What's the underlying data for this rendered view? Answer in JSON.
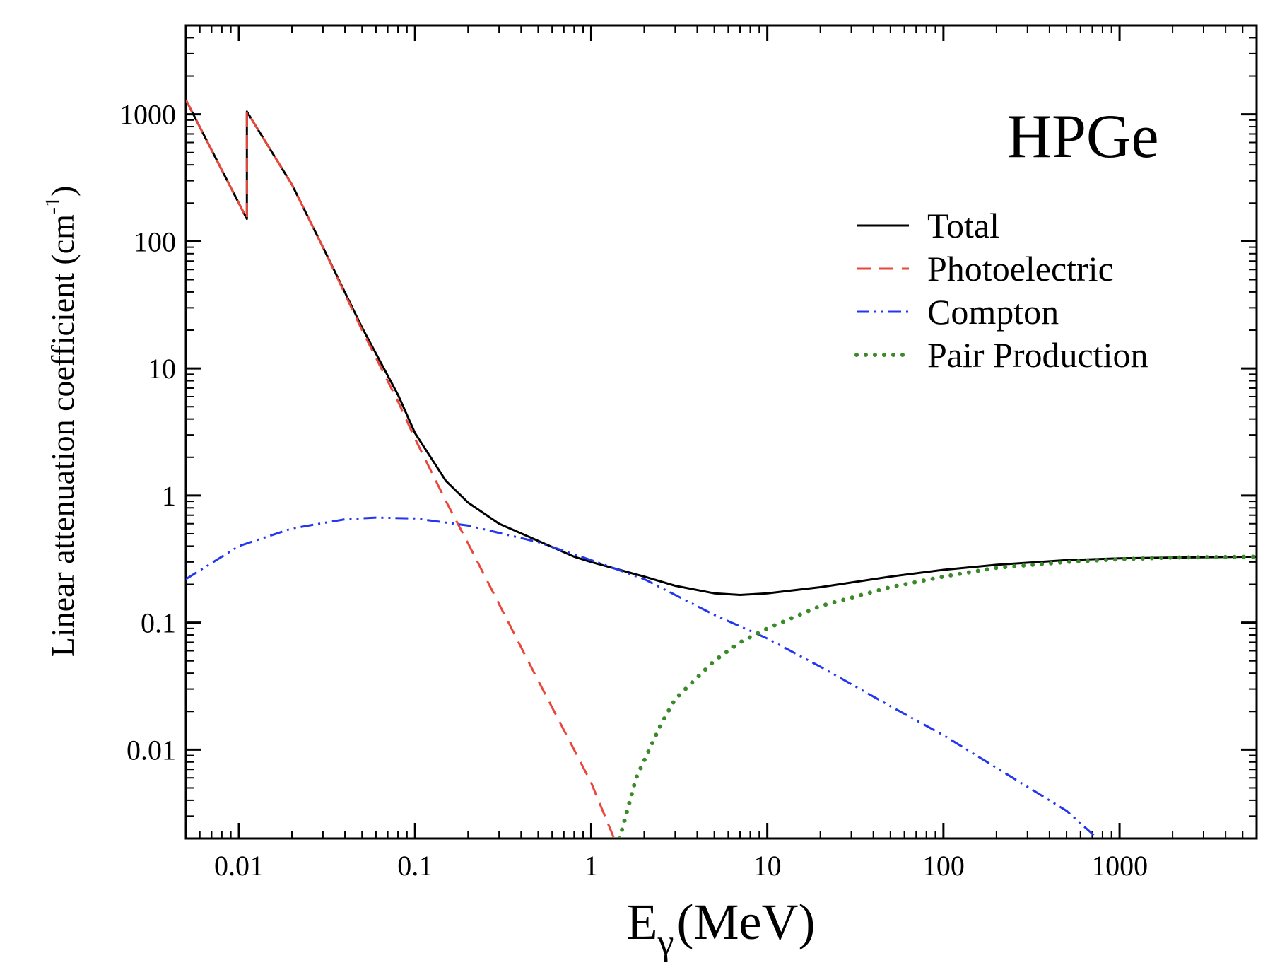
{
  "chart_data": {
    "type": "line",
    "panel_label": "HPGe",
    "xlabel": "E",
    "xlabel_sub": "γ",
    "xlabel_unit": "(MeV)",
    "ylabel": "Linear attenuation coefficient (cm",
    "ylabel_sup": "-1",
    "ylabel_close": ")",
    "xscale": "log",
    "yscale": "log",
    "xlim": [
      0.005,
      6000
    ],
    "ylim": [
      0.002,
      5000
    ],
    "xticks": [
      0.01,
      0.1,
      1,
      10,
      100,
      1000
    ],
    "xtick_labels": [
      "0.01",
      "0.1",
      "1",
      "10",
      "100",
      "1000"
    ],
    "yticks": [
      0.01,
      0.1,
      1,
      10,
      100,
      1000
    ],
    "ytick_labels": [
      "0.01",
      "0.1",
      "1",
      "10",
      "100",
      "1000"
    ],
    "grid": false,
    "legend_position": "top-right",
    "series": [
      {
        "name": "Total",
        "color": "#000000",
        "style": "solid",
        "points": [
          [
            0.005,
            1300
          ],
          [
            0.0111,
            150
          ],
          [
            0.0111,
            1050
          ],
          [
            0.02,
            280
          ],
          [
            0.03,
            90
          ],
          [
            0.05,
            21
          ],
          [
            0.08,
            6.2
          ],
          [
            0.1,
            3.1
          ],
          [
            0.15,
            1.3
          ],
          [
            0.2,
            0.88
          ],
          [
            0.3,
            0.6
          ],
          [
            0.5,
            0.44
          ],
          [
            0.8,
            0.33
          ],
          [
            1,
            0.3
          ],
          [
            2,
            0.23
          ],
          [
            3,
            0.195
          ],
          [
            5,
            0.17
          ],
          [
            7,
            0.165
          ],
          [
            10,
            0.17
          ],
          [
            20,
            0.19
          ],
          [
            50,
            0.23
          ],
          [
            100,
            0.26
          ],
          [
            200,
            0.285
          ],
          [
            500,
            0.31
          ],
          [
            1000,
            0.32
          ],
          [
            2000,
            0.325
          ],
          [
            6000,
            0.33
          ]
        ]
      },
      {
        "name": "Photoelectric",
        "color": "#e8473a",
        "style": "dashed",
        "points": [
          [
            0.005,
            1300
          ],
          [
            0.0111,
            150
          ],
          [
            0.0111,
            1050
          ],
          [
            0.02,
            280
          ],
          [
            0.03,
            90
          ],
          [
            0.05,
            20
          ],
          [
            0.08,
            5.5
          ],
          [
            0.1,
            2.8
          ],
          [
            0.15,
            0.9
          ],
          [
            0.2,
            0.42
          ],
          [
            0.3,
            0.14
          ],
          [
            0.5,
            0.035
          ],
          [
            0.8,
            0.01
          ],
          [
            1,
            0.0055
          ],
          [
            1.35,
            0.002
          ]
        ]
      },
      {
        "name": "Compton",
        "color": "#2337f0",
        "style": "dash-dot-dot",
        "points": [
          [
            0.005,
            0.22
          ],
          [
            0.008,
            0.33
          ],
          [
            0.01,
            0.4
          ],
          [
            0.02,
            0.55
          ],
          [
            0.04,
            0.65
          ],
          [
            0.06,
            0.67
          ],
          [
            0.1,
            0.66
          ],
          [
            0.2,
            0.58
          ],
          [
            0.5,
            0.43
          ],
          [
            1,
            0.31
          ],
          [
            2,
            0.22
          ],
          [
            5,
            0.115
          ],
          [
            10,
            0.075
          ],
          [
            20,
            0.045
          ],
          [
            50,
            0.022
          ],
          [
            100,
            0.013
          ],
          [
            200,
            0.0072
          ],
          [
            500,
            0.0033
          ],
          [
            750,
            0.002
          ]
        ]
      },
      {
        "name": "Pair Production",
        "color": "#3a8a2a",
        "style": "dotted",
        "points": [
          [
            1.45,
            0.002
          ],
          [
            1.8,
            0.006
          ],
          [
            2.5,
            0.016
          ],
          [
            3,
            0.025
          ],
          [
            5,
            0.05
          ],
          [
            7,
            0.07
          ],
          [
            10,
            0.09
          ],
          [
            20,
            0.135
          ],
          [
            50,
            0.19
          ],
          [
            100,
            0.23
          ],
          [
            200,
            0.27
          ],
          [
            500,
            0.3
          ],
          [
            1000,
            0.315
          ],
          [
            2000,
            0.325
          ],
          [
            6000,
            0.33
          ]
        ]
      }
    ]
  }
}
